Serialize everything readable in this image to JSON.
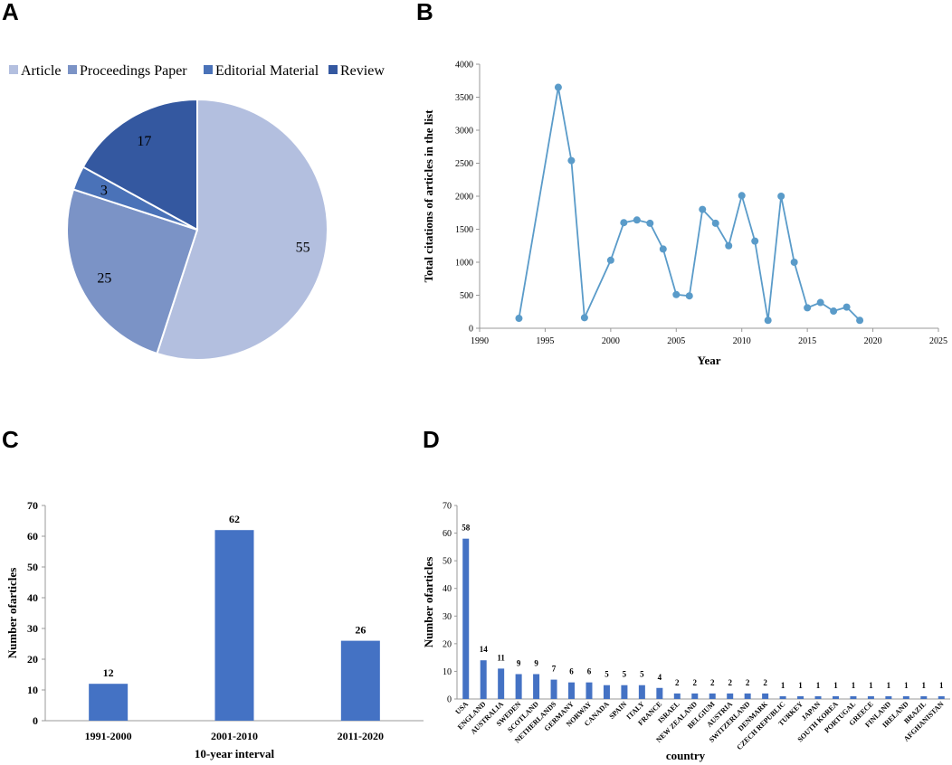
{
  "panels": {
    "a": "A",
    "b": "B",
    "c": "C",
    "d": "D"
  },
  "colors": {
    "article": "#b3bfdf",
    "proceedings": "#7b93c6",
    "editorial": "#4a72b8",
    "review": "#3458a0",
    "line": "#5a9bc9",
    "bar": "#4472c4",
    "axis": "#999999"
  },
  "chart_data": [
    {
      "type": "pie",
      "legend_position": "top",
      "labels": [
        "Article",
        "Proceedings Paper",
        "Editorial Material",
        "Review"
      ],
      "values": [
        55,
        25,
        3,
        17
      ],
      "value_labels": [
        "55",
        "25",
        "3",
        "17"
      ]
    },
    {
      "type": "line",
      "xlabel": "Year",
      "ylabel": "Total citations of articles in the list",
      "xlim": [
        1990,
        2025
      ],
      "ylim": [
        0,
        4000
      ],
      "xticks": [
        "1990",
        "1995",
        "2000",
        "2005",
        "2010",
        "2015",
        "2020",
        "2025"
      ],
      "yticks": [
        "0",
        "500",
        "1000",
        "1500",
        "2000",
        "2500",
        "3000",
        "3500",
        "4000"
      ],
      "x": [
        1993,
        1996,
        1997,
        1998,
        2000,
        2001,
        2002,
        2003,
        2004,
        2005,
        2006,
        2007,
        2008,
        2009,
        2010,
        2011,
        2012,
        2013,
        2014,
        2015,
        2016,
        2017,
        2018,
        2019
      ],
      "y": [
        150,
        3650,
        2540,
        160,
        1030,
        1600,
        1640,
        1590,
        1200,
        510,
        490,
        1800,
        1590,
        1250,
        2010,
        1320,
        120,
        2000,
        1000,
        310,
        390,
        260,
        320,
        120
      ]
    },
    {
      "type": "bar",
      "xlabel": "10-year interval",
      "ylabel": "Number ofarticles",
      "ylim": [
        0,
        70
      ],
      "yticks": [
        "0",
        "10",
        "20",
        "30",
        "40",
        "50",
        "60",
        "70"
      ],
      "categories": [
        "1991-2000",
        "2001-2010",
        "2011-2020"
      ],
      "values": [
        12,
        62,
        26
      ],
      "value_labels": [
        "12",
        "62",
        "26"
      ]
    },
    {
      "type": "bar",
      "xlabel": "country",
      "ylabel": "Number ofarticles",
      "ylim": [
        0,
        70
      ],
      "yticks": [
        "0",
        "10",
        "20",
        "30",
        "40",
        "50",
        "60",
        "70"
      ],
      "categories": [
        "USA",
        "ENGLAND",
        "AUSTRALIA",
        "SWEDEN",
        "SCOTLAND",
        "NETHERLANDS",
        "GERMANY",
        "NORWAY",
        "CANADA",
        "SPAIN",
        "ITALY",
        "FRANCE",
        "ISRAEL",
        "NEW ZEALAND",
        "BELGIUM",
        "AUSTRIA",
        "SWITZERLAND",
        "DENMARK",
        "CZECH REPUBLIC",
        "TURKEY",
        "JAPAN",
        "SOUTH KOREA",
        "PORTUGAL",
        "GREECE",
        "FINLAND",
        "IRELAND",
        "BRAZIL",
        "AFGHANISTAN"
      ],
      "values": [
        58,
        14,
        11,
        9,
        9,
        7,
        6,
        6,
        5,
        5,
        5,
        4,
        2,
        2,
        2,
        2,
        2,
        2,
        1,
        1,
        1,
        1,
        1,
        1,
        1,
        1,
        1,
        1
      ],
      "value_labels": [
        "58",
        "14",
        "11",
        "9",
        "9",
        "7",
        "6",
        "6",
        "5",
        "5",
        "5",
        "4",
        "2",
        "2",
        "2",
        "2",
        "2",
        "2",
        "1",
        "1",
        "1",
        "1",
        "1",
        "1",
        "1",
        "1",
        "1",
        "1"
      ]
    }
  ]
}
